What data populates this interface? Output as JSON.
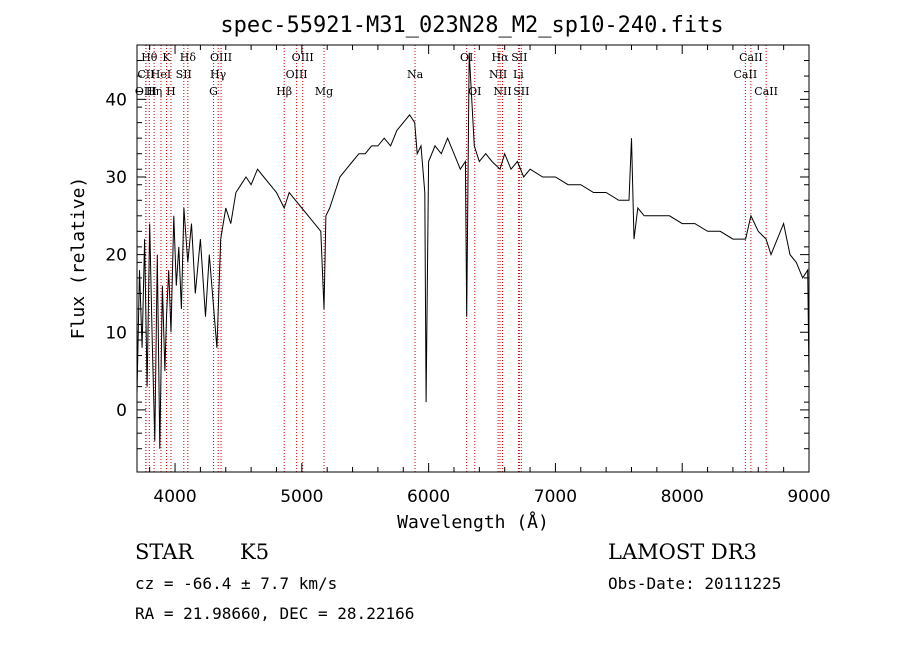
{
  "chart_data": {
    "type": "line",
    "title": "spec-55921-M31_023N28_M2_sp10-240.fits",
    "xlabel": "Wavelength (Å)",
    "ylabel": "Flux (relative)",
    "xlim": [
      3700,
      9000
    ],
    "ylim": [
      -8,
      47
    ],
    "x_ticks": [
      4000,
      5000,
      6000,
      7000,
      8000,
      9000
    ],
    "y_ticks": [
      0,
      10,
      20,
      30,
      40
    ],
    "series": [
      {
        "name": "spectrum",
        "x": [
          3700,
          3720,
          3740,
          3760,
          3780,
          3800,
          3820,
          3840,
          3860,
          3880,
          3900,
          3920,
          3933,
          3950,
          3968,
          3990,
          4010,
          4030,
          4050,
          4070,
          4101,
          4130,
          4160,
          4200,
          4240,
          4270,
          4300,
          4330,
          4360,
          4400,
          4440,
          4480,
          4520,
          4560,
          4600,
          4650,
          4700,
          4750,
          4800,
          4861,
          4900,
          4950,
          5000,
          5050,
          5100,
          5150,
          5175,
          5190,
          5220,
          5260,
          5300,
          5350,
          5400,
          5450,
          5500,
          5550,
          5600,
          5650,
          5700,
          5750,
          5800,
          5850,
          5890,
          5910,
          5940,
          5970,
          5980,
          6000,
          6050,
          6100,
          6150,
          6200,
          6250,
          6290,
          6300,
          6320,
          6360,
          6400,
          6450,
          6500,
          6563,
          6600,
          6650,
          6700,
          6750,
          6800,
          6900,
          7000,
          7100,
          7200,
          7300,
          7400,
          7500,
          7580,
          7600,
          7620,
          7650,
          7700,
          7800,
          7900,
          8000,
          8100,
          8200,
          8300,
          8400,
          8500,
          8542,
          8600,
          8662,
          8700,
          8750,
          8800,
          8850,
          8900,
          8950,
          8990,
          9000
        ],
        "y": [
          2,
          18,
          8,
          22,
          3,
          24,
          9,
          -4,
          20,
          -5,
          16,
          5,
          12,
          18,
          10,
          25,
          16,
          21,
          13,
          26,
          19,
          24,
          15,
          22,
          12,
          20,
          14,
          8,
          22,
          26,
          24,
          28,
          29,
          30,
          29,
          31,
          30,
          29,
          28,
          26,
          28,
          27,
          26,
          25,
          24,
          23,
          13,
          25,
          26,
          28,
          30,
          31,
          32,
          33,
          33,
          34,
          34,
          35,
          34,
          36,
          37,
          38,
          37,
          33,
          34,
          28,
          1,
          32,
          34,
          33,
          35,
          33,
          31,
          32,
          12,
          46,
          34,
          32,
          33,
          32,
          31,
          33,
          31,
          32,
          30,
          31,
          30,
          30,
          29,
          29,
          28,
          28,
          27,
          27,
          35,
          22,
          26,
          25,
          25,
          25,
          24,
          24,
          23,
          23,
          22,
          22,
          25,
          23,
          22,
          20,
          22,
          24,
          20,
          19,
          17,
          18,
          4
        ]
      }
    ],
    "line_markers": [
      {
        "label": "Hθ",
        "x": 3797,
        "row": 1
      },
      {
        "label": "CII",
        "x": 3770,
        "row": 2
      },
      {
        "label": "OIII",
        "x": 3770,
        "row": 3
      },
      {
        "label": "Hη",
        "x": 3835,
        "row": 3
      },
      {
        "label": "K",
        "x": 3933,
        "row": 1
      },
      {
        "label": "HeI",
        "x": 3889,
        "row": 2
      },
      {
        "label": "H",
        "x": 3968,
        "row": 3
      },
      {
        "label": "Hδ",
        "x": 4101,
        "row": 1
      },
      {
        "label": "SII",
        "x": 4069,
        "row": 2
      },
      {
        "label": "OIII",
        "x": 4363,
        "row": 1
      },
      {
        "label": "Hγ",
        "x": 4340,
        "row": 2
      },
      {
        "label": "G",
        "x": 4304,
        "row": 3
      },
      {
        "label": "Hβ",
        "x": 4861,
        "row": 3
      },
      {
        "label": "OIII",
        "x": 5007,
        "row": 1
      },
      {
        "label": "OIII",
        "x": 4959,
        "row": 2
      },
      {
        "label": "Mg",
        "x": 5175,
        "row": 3
      },
      {
        "label": "Na",
        "x": 5893,
        "row": 2
      },
      {
        "label": "OI",
        "x": 6300,
        "row": 1
      },
      {
        "label": "OI",
        "x": 6364,
        "row": 3
      },
      {
        "label": "Hα",
        "x": 6563,
        "row": 1
      },
      {
        "label": "SII",
        "x": 6716,
        "row": 1
      },
      {
        "label": "NII",
        "x": 6548,
        "row": 2
      },
      {
        "label": "Li",
        "x": 6708,
        "row": 2
      },
      {
        "label": "NII",
        "x": 6583,
        "row": 3
      },
      {
        "label": "SII",
        "x": 6731,
        "row": 3
      },
      {
        "label": "CaII",
        "x": 8542,
        "row": 1
      },
      {
        "label": "CaII",
        "x": 8498,
        "row": 2
      },
      {
        "label": "CaII",
        "x": 8662,
        "row": 3
      }
    ]
  },
  "info": {
    "object_class": "STAR",
    "subclass": "K5",
    "survey": "LAMOST DR3",
    "redshift_line": "cz = -66.4 ± 7.7 km/s",
    "obs_date": "Obs-Date: 20111225",
    "coords": "RA =  21.98660, DEC =  28.22166"
  },
  "colors": {
    "spectrum": "#000000",
    "marker": "#cc0000",
    "axes": "#000000",
    "background": "#ffffff"
  }
}
